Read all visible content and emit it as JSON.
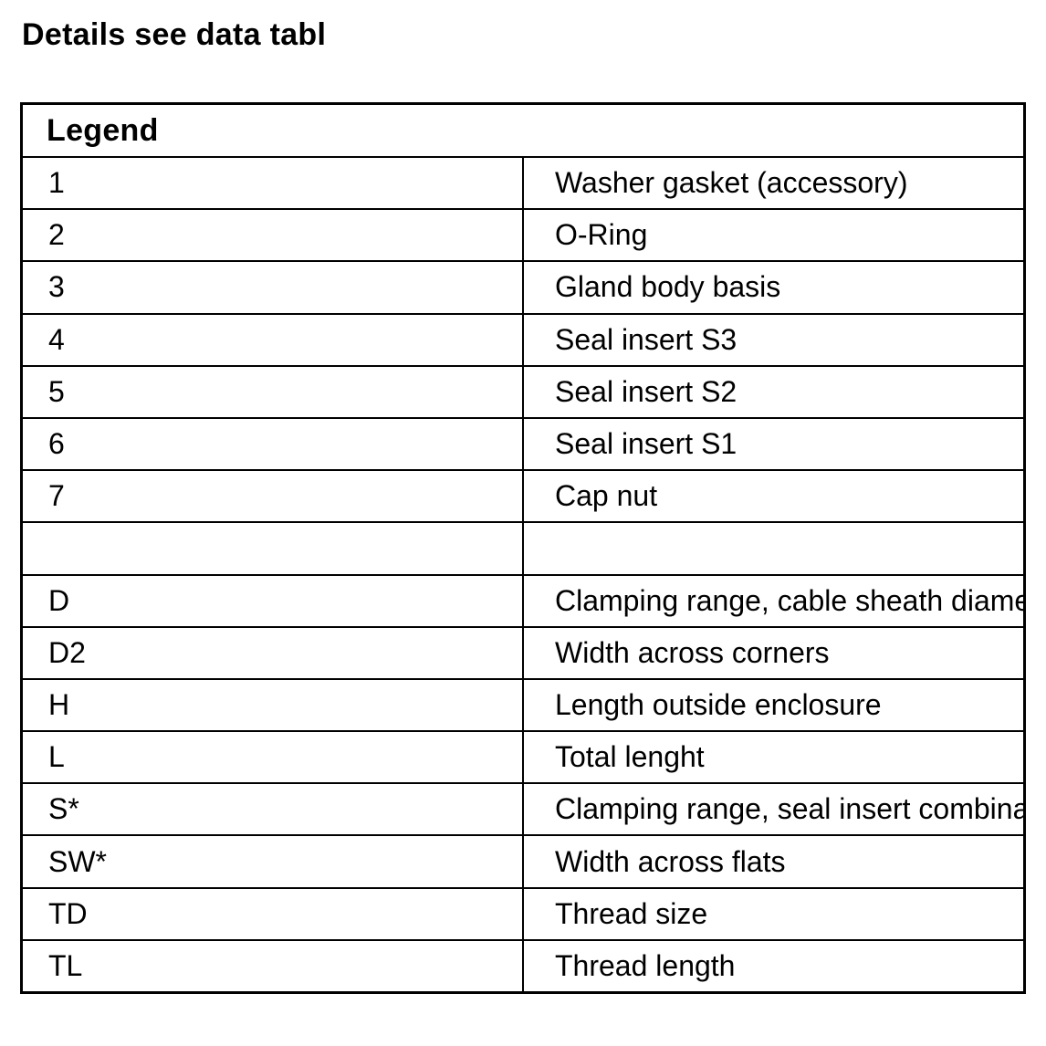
{
  "page": {
    "title": "Details see data tabl"
  },
  "legend_table": {
    "header": "Legend",
    "columns": [
      "key",
      "description"
    ],
    "rows": [
      {
        "key": "1",
        "description": "Washer gasket (accessory)"
      },
      {
        "key": "2",
        "description": "O-Ring"
      },
      {
        "key": "3",
        "description": "Gland body basis"
      },
      {
        "key": "4",
        "description": "Seal insert S3"
      },
      {
        "key": "5",
        "description": "Seal insert S2"
      },
      {
        "key": "6",
        "description": "Seal insert S1"
      },
      {
        "key": "7",
        "description": "Cap nut"
      },
      {
        "key": "",
        "description": ""
      },
      {
        "key": "D",
        "description": "Clamping range, cable sheath diameter"
      },
      {
        "key": "D2",
        "description": "Width across corners"
      },
      {
        "key": "H",
        "description": "Length outside enclosure"
      },
      {
        "key": "L",
        "description": "Total lenght"
      },
      {
        "key": "S*",
        "description": "Clamping range, seal insert combinations"
      },
      {
        "key": "SW*",
        "description": "Width across flats"
      },
      {
        "key": "TD",
        "description": "Thread size"
      },
      {
        "key": "TL",
        "description": "Thread length"
      }
    ]
  },
  "colors": {
    "background": "#ffffff",
    "text": "#000000",
    "border": "#000000"
  }
}
